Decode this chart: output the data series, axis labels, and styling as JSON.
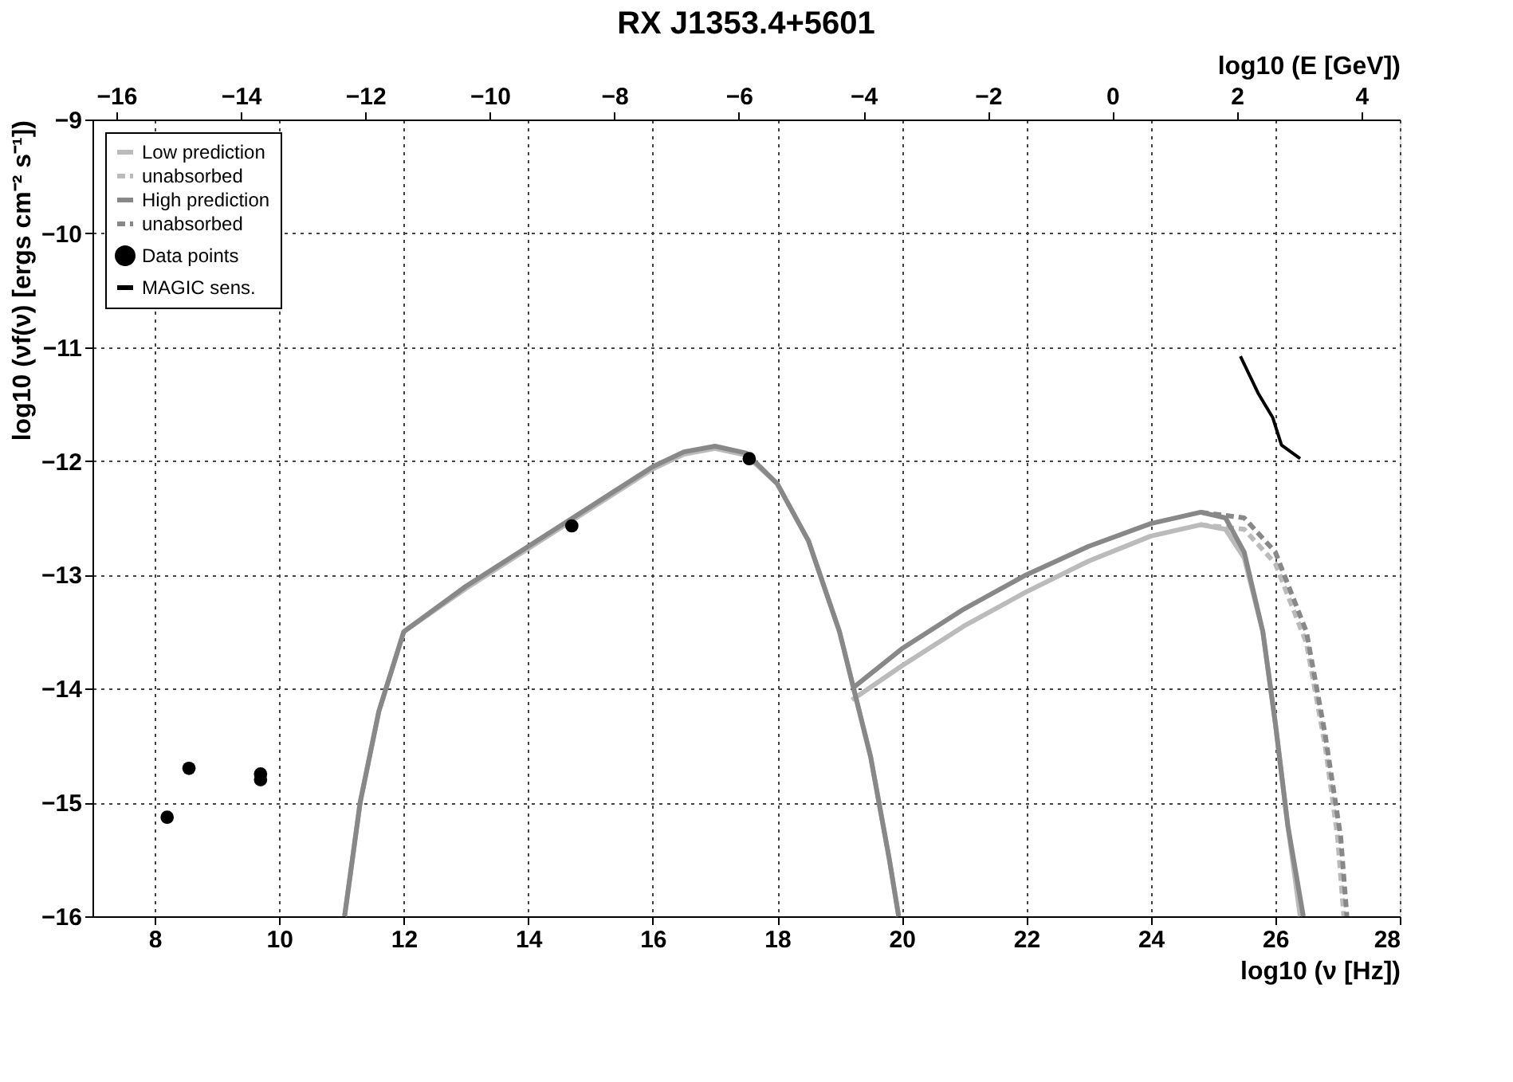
{
  "chart_data": {
    "type": "line",
    "title": "RX J1353.4+5601",
    "xlabel": "log10 (ν [Hz])",
    "ylabel": "log10 (νf(ν) [ergs cm⁻² s⁻¹])",
    "x2label": "log10 (E [GeV])",
    "xlim": [
      7,
      28
    ],
    "xticks": [
      8,
      10,
      12,
      14,
      16,
      18,
      20,
      22,
      24,
      26,
      28
    ],
    "ylim": [
      -16,
      -9
    ],
    "yticks": [
      -16,
      -15,
      -14,
      -13,
      -12,
      -11,
      -10,
      -9
    ],
    "x2lim": [
      -16.383,
      4.617
    ],
    "x2ticks": [
      -16,
      -14,
      -12,
      -10,
      -8,
      -6,
      -4,
      -2,
      0,
      2,
      4
    ],
    "grid": true,
    "legend": "top left",
    "series": [
      {
        "name": "Low prediction",
        "color": "#bbbbbb",
        "type": "line",
        "line_style": "solid",
        "x": [
          11.05,
          11.3,
          11.6,
          12,
          13,
          14,
          15,
          16,
          16.5,
          17,
          17.5,
          18,
          18.5,
          19,
          19.5,
          19.8,
          19.95,
          null,
          19.2,
          20,
          21,
          22,
          23,
          24,
          24.8,
          25.2,
          25.5,
          25.8,
          26,
          26.2,
          26.4
        ],
        "values": [
          -16,
          -15,
          -14.2,
          -13.5,
          -13.12,
          -12.77,
          -12.42,
          -12.07,
          -11.94,
          -11.89,
          -11.95,
          -12.2,
          -12.7,
          -13.5,
          -14.6,
          -15.5,
          -16,
          null,
          -14.1,
          -13.8,
          -13.45,
          -13.15,
          -12.88,
          -12.66,
          -12.56,
          -12.6,
          -12.85,
          -13.5,
          -14.3,
          -15.2,
          -16
        ]
      },
      {
        "name": "unabsorbed",
        "color": "#bbbbbb",
        "type": "line",
        "line_style": "dashed",
        "x": [
          24.8,
          25.5,
          26,
          26.5,
          26.8,
          27,
          27.1
        ],
        "values": [
          -12.56,
          -12.6,
          -12.9,
          -13.6,
          -14.5,
          -15.3,
          -16
        ]
      },
      {
        "name": "High prediction",
        "color": "#888888",
        "type": "line",
        "line_style": "solid",
        "x": [
          11.05,
          11.3,
          11.6,
          12,
          13,
          14,
          15,
          16,
          16.5,
          17,
          17.5,
          18,
          18.5,
          19,
          19.5,
          19.8,
          19.95,
          null,
          19.2,
          20,
          21,
          22,
          23,
          24,
          24.8,
          25.2,
          25.5,
          25.8,
          26,
          26.2,
          26.45
        ],
        "values": [
          -16,
          -15,
          -14.2,
          -13.5,
          -13.1,
          -12.75,
          -12.4,
          -12.05,
          -11.92,
          -11.87,
          -11.93,
          -12.2,
          -12.7,
          -13.5,
          -14.6,
          -15.5,
          -16,
          null,
          -14.0,
          -13.65,
          -13.3,
          -13.0,
          -12.75,
          -12.55,
          -12.45,
          -12.5,
          -12.8,
          -13.5,
          -14.3,
          -15.2,
          -16
        ]
      },
      {
        "name": "unabsorbed ",
        "color": "#888888",
        "type": "line",
        "line_style": "dashed",
        "x": [
          24.8,
          25.5,
          26,
          26.5,
          26.8,
          27.05,
          27.15
        ],
        "values": [
          -12.45,
          -12.5,
          -12.8,
          -13.5,
          -14.4,
          -15.3,
          -16
        ]
      },
      {
        "name": "Data points",
        "color": "#000000",
        "type": "scatter",
        "marker": "circle",
        "x": [
          8.2,
          8.55,
          9.7,
          9.7,
          14.7,
          17.55
        ],
        "values": [
          -15.13,
          -14.7,
          -14.75,
          -14.8,
          -12.57,
          -11.98
        ]
      },
      {
        "name": "MAGIC sens.",
        "color": "#000000",
        "type": "line",
        "line_style": "solid",
        "x": [
          25.44,
          25.73,
          25.96,
          26.1,
          26.4
        ],
        "values": [
          -11.08,
          -11.41,
          -11.62,
          -11.86,
          -11.98
        ]
      }
    ]
  }
}
